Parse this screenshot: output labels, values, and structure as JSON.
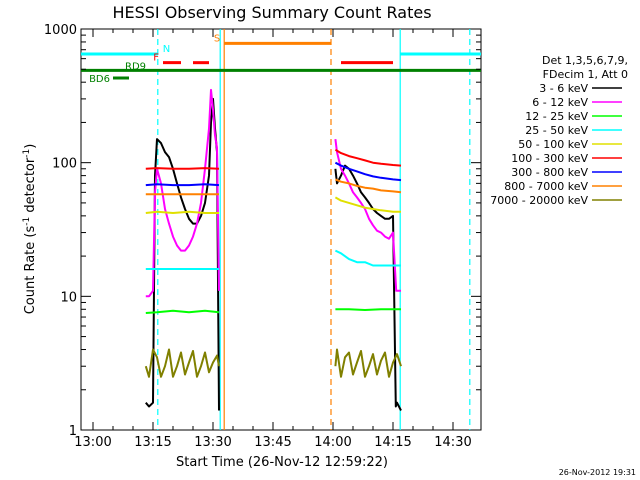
{
  "chart_data": {
    "type": "line",
    "title": "HESSI Observing Summary Count Rates",
    "xlabel": "Start Time (26-Nov-12 12:59:22)",
    "ylabel_parts": {
      "base": "Count Rate (s",
      "sup1": "-1",
      "mid": " detector",
      "sup2": "-1",
      "end": ")"
    },
    "timestamp": "26-Nov-2012 19:31",
    "x_units": "minutes after 13:00",
    "xlim": [
      -3,
      97
    ],
    "xticks": [
      {
        "v": 0,
        "label": "13:00"
      },
      {
        "v": 15,
        "label": "13:15"
      },
      {
        "v": 30,
        "label": "13:30"
      },
      {
        "v": 45,
        "label": "13:45"
      },
      {
        "v": 60,
        "label": "14:00"
      },
      {
        "v": 75,
        "label": "14:15"
      },
      {
        "v": 90,
        "label": "14:30"
      }
    ],
    "ylim": [
      1,
      1000
    ],
    "yscale": "log",
    "yticks": [
      {
        "v": 1,
        "label": "1"
      },
      {
        "v": 10,
        "label": "10"
      },
      {
        "v": 100,
        "label": "100"
      },
      {
        "v": 1000,
        "label": "1000"
      }
    ],
    "legend": {
      "placement": "right",
      "header": [
        "Det 1,3,5,6,7,9,",
        "FDecim 1, Att 0"
      ]
    },
    "series": [
      {
        "name": "3 - 6 keV",
        "color": "#000000",
        "segments": [
          [
            [
              13.2,
              1.6
            ],
            [
              14,
              1.5
            ],
            [
              15,
              1.6
            ],
            [
              15.5,
              80
            ],
            [
              16,
              150
            ],
            [
              17,
              140
            ],
            [
              18,
              120
            ],
            [
              19,
              110
            ],
            [
              20,
              90
            ],
            [
              21,
              70
            ],
            [
              22,
              55
            ],
            [
              23,
              45
            ],
            [
              24,
              38
            ],
            [
              25,
              35
            ],
            [
              26,
              35
            ],
            [
              27,
              40
            ],
            [
              28,
              50
            ],
            [
              29,
              80
            ],
            [
              29.5,
              200
            ],
            [
              30,
              300
            ],
            [
              30.5,
              180
            ],
            [
              31,
              120
            ],
            [
              31.5,
              1.4
            ]
          ],
          [
            [
              60.6,
              90
            ],
            [
              61,
              70
            ],
            [
              62,
              80
            ],
            [
              63,
              95
            ],
            [
              64,
              90
            ],
            [
              65,
              80
            ],
            [
              66,
              70
            ],
            [
              67,
              60
            ],
            [
              68,
              55
            ],
            [
              69,
              50
            ],
            [
              70,
              45
            ],
            [
              71,
              42
            ],
            [
              72,
              40
            ],
            [
              73,
              38
            ],
            [
              74,
              38
            ],
            [
              75,
              40
            ],
            [
              75.7,
              1.5
            ],
            [
              76,
              1.6
            ],
            [
              77,
              1.4
            ]
          ]
        ]
      },
      {
        "name": "6 - 12 keV",
        "color": "#ff00ff",
        "segments": [
          [
            [
              13.2,
              10
            ],
            [
              14,
              10
            ],
            [
              15,
              11
            ],
            [
              15.5,
              60
            ],
            [
              16,
              90
            ],
            [
              17,
              70
            ],
            [
              18,
              45
            ],
            [
              19,
              35
            ],
            [
              20,
              28
            ],
            [
              21,
              24
            ],
            [
              22,
              22
            ],
            [
              23,
              22
            ],
            [
              24,
              24
            ],
            [
              25,
              28
            ],
            [
              26,
              35
            ],
            [
              27,
              50
            ],
            [
              28,
              90
            ],
            [
              29,
              180
            ],
            [
              29.5,
              350
            ],
            [
              30,
              250
            ],
            [
              30.5,
              160
            ],
            [
              31,
              130
            ],
            [
              31.5,
              11
            ]
          ],
          [
            [
              60.6,
              150
            ],
            [
              61,
              120
            ],
            [
              62,
              90
            ],
            [
              63,
              80
            ],
            [
              64,
              70
            ],
            [
              65,
              60
            ],
            [
              66,
              55
            ],
            [
              67,
              50
            ],
            [
              68,
              45
            ],
            [
              69,
              38
            ],
            [
              70,
              34
            ],
            [
              71,
              31
            ],
            [
              72,
              30
            ],
            [
              73,
              28
            ],
            [
              74,
              27
            ],
            [
              75,
              30
            ],
            [
              75.8,
              11
            ],
            [
              77,
              11
            ]
          ]
        ]
      },
      {
        "name": "12 - 25 keV",
        "color": "#00ff00",
        "segments": [
          [
            [
              13.2,
              7.5
            ],
            [
              16,
              7.6
            ],
            [
              20,
              7.8
            ],
            [
              24,
              7.6
            ],
            [
              28,
              7.8
            ],
            [
              31.5,
              7.6
            ]
          ],
          [
            [
              60.6,
              8
            ],
            [
              64,
              8
            ],
            [
              68,
              7.9
            ],
            [
              72,
              8
            ],
            [
              75.8,
              8
            ],
            [
              77,
              8
            ]
          ]
        ]
      },
      {
        "name": "25 - 50 keV",
        "color": "#00ffff",
        "segments": [
          [
            [
              13.2,
              16
            ],
            [
              16,
              16
            ],
            [
              20,
              16
            ],
            [
              24,
              16
            ],
            [
              28,
              16
            ],
            [
              31.5,
              16
            ]
          ],
          [
            [
              60.6,
              22
            ],
            [
              62,
              21
            ],
            [
              64,
              19
            ],
            [
              66,
              18
            ],
            [
              68,
              18
            ],
            [
              70,
              17
            ],
            [
              72,
              17
            ],
            [
              75,
              17
            ],
            [
              77,
              17
            ]
          ]
        ]
      },
      {
        "name": "50 - 100 keV",
        "color": "#e0e000",
        "segments": [
          [
            [
              13.2,
              42
            ],
            [
              16,
              43
            ],
            [
              20,
              42
            ],
            [
              24,
              43
            ],
            [
              28,
              42
            ],
            [
              31.5,
              42
            ]
          ],
          [
            [
              60.6,
              55
            ],
            [
              62,
              52
            ],
            [
              64,
              50
            ],
            [
              66,
              48
            ],
            [
              68,
              46
            ],
            [
              70,
              45
            ],
            [
              72,
              44
            ],
            [
              75,
              43
            ],
            [
              77,
              43
            ]
          ]
        ]
      },
      {
        "name": "100 - 300 keV",
        "color": "#ff0000",
        "segments": [
          [
            [
              13.2,
              90
            ],
            [
              16,
              91
            ],
            [
              20,
              90
            ],
            [
              24,
              90
            ],
            [
              28,
              91
            ],
            [
              31.5,
              90
            ]
          ],
          [
            [
              60.6,
              125
            ],
            [
              62,
              118
            ],
            [
              64,
              112
            ],
            [
              66,
              108
            ],
            [
              68,
              104
            ],
            [
              70,
              100
            ],
            [
              72,
              98
            ],
            [
              75,
              96
            ],
            [
              77,
              95
            ]
          ]
        ]
      },
      {
        "name": "300 - 800 keV",
        "color": "#0000ff",
        "segments": [
          [
            [
              13.2,
              68
            ],
            [
              16,
              69
            ],
            [
              20,
              68
            ],
            [
              24,
              68
            ],
            [
              28,
              69
            ],
            [
              31.5,
              68
            ]
          ],
          [
            [
              60.6,
              100
            ],
            [
              62,
              95
            ],
            [
              64,
              90
            ],
            [
              66,
              86
            ],
            [
              68,
              82
            ],
            [
              70,
              79
            ],
            [
              72,
              77
            ],
            [
              75,
              75
            ],
            [
              77,
              74
            ]
          ]
        ]
      },
      {
        "name": "800 - 7000 keV",
        "color": "#ff8000",
        "segments": [
          [
            [
              13.2,
              58
            ],
            [
              16,
              58
            ],
            [
              20,
              58
            ],
            [
              24,
              58
            ],
            [
              28,
              58
            ],
            [
              31.5,
              58
            ]
          ],
          [
            [
              60.6,
              75
            ],
            [
              62,
              72
            ],
            [
              64,
              70
            ],
            [
              66,
              67
            ],
            [
              68,
              65
            ],
            [
              70,
              64
            ],
            [
              72,
              62
            ],
            [
              75,
              61
            ],
            [
              77,
              60
            ]
          ]
        ]
      },
      {
        "name": "7000 - 20000 keV",
        "color": "#808000",
        "segments": [
          [
            [
              13.2,
              3
            ],
            [
              14,
              2.5
            ],
            [
              15,
              4
            ],
            [
              16,
              3.5
            ],
            [
              17,
              2.5
            ],
            [
              18,
              3
            ],
            [
              19,
              4
            ],
            [
              20,
              2.5
            ],
            [
              21,
              3
            ],
            [
              22,
              3.8
            ],
            [
              23,
              2.6
            ],
            [
              24,
              3.2
            ],
            [
              25,
              3.9
            ],
            [
              26,
              2.5
            ],
            [
              27,
              3
            ],
            [
              28,
              3.8
            ],
            [
              29,
              2.7
            ],
            [
              30,
              3.2
            ],
            [
              31,
              3.6
            ],
            [
              31.5,
              3
            ]
          ],
          [
            [
              60.6,
              3
            ],
            [
              61,
              4
            ],
            [
              62,
              2.5
            ],
            [
              63,
              3.5
            ],
            [
              64,
              3.8
            ],
            [
              65,
              2.6
            ],
            [
              66,
              3.2
            ],
            [
              67,
              3.9
            ],
            [
              68,
              2.5
            ],
            [
              69,
              3
            ],
            [
              70,
              3.7
            ],
            [
              71,
              2.6
            ],
            [
              72,
              3.3
            ],
            [
              73,
              3.8
            ],
            [
              74,
              2.5
            ],
            [
              75,
              3.2
            ],
            [
              76,
              3.7
            ],
            [
              77,
              3
            ]
          ]
        ]
      }
    ],
    "vertical_lines": [
      {
        "x": 16.2,
        "color": "#00ffff",
        "style": "dashed"
      },
      {
        "x": 31.8,
        "color": "#00ffff",
        "style": "solid"
      },
      {
        "x": 32.8,
        "color": "#ff8000",
        "style": "solid"
      },
      {
        "x": 59.5,
        "color": "#ff8000",
        "style": "dashed"
      },
      {
        "x": 76.8,
        "color": "#00ffff",
        "style": "solid"
      },
      {
        "x": 94.2,
        "color": "#00ffff",
        "style": "dashed"
      }
    ],
    "flag_bars": [
      {
        "label": "N",
        "color": "#00ffff",
        "level": 650,
        "segments": [
          [
            -3,
            16.2
          ],
          [
            76.8,
            97
          ]
        ]
      },
      {
        "label": "S",
        "color": "#ff8000",
        "level": 780,
        "segments": [
          [
            32.8,
            59.5
          ]
        ]
      },
      {
        "label": "F",
        "color": "#ff0000",
        "level": 560,
        "segments": [
          [
            17.5,
            22
          ],
          [
            25,
            29
          ],
          [
            62,
            75
          ]
        ]
      },
      {
        "label": "RD9",
        "color": "#008000",
        "level": 490,
        "segments": [
          [
            -3,
            97
          ]
        ]
      },
      {
        "label": "BD6",
        "color": "#008000",
        "level": 430,
        "segments": [
          [
            5,
            9
          ]
        ]
      }
    ]
  }
}
